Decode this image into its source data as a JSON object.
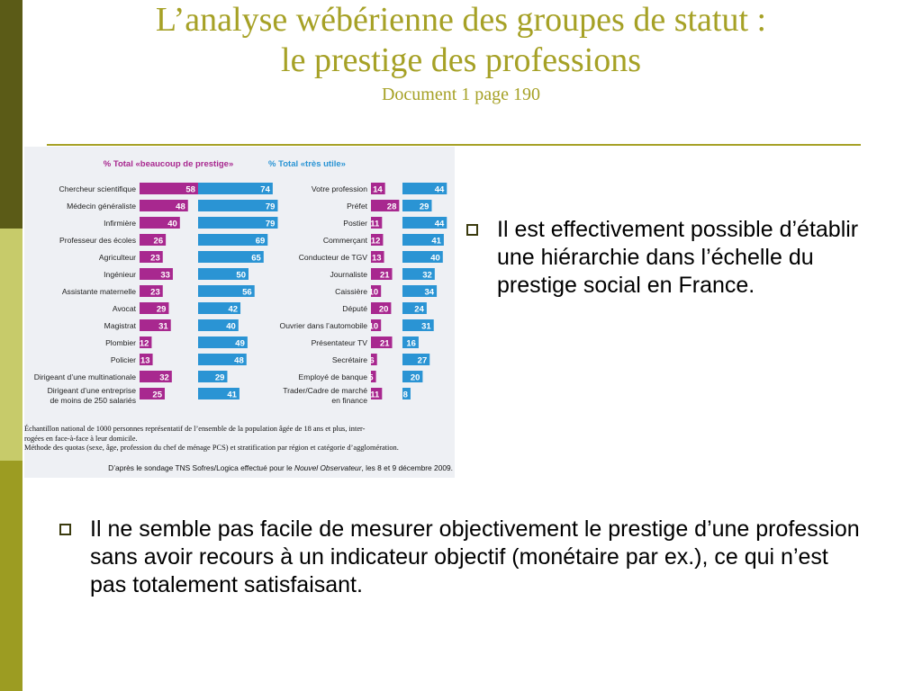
{
  "slide": {
    "title_line1": "L’analyse wébérienne des groupes de statut :",
    "title_line2": "le prestige des professions",
    "subtitle": "Document 1 page 190",
    "bullet1": "Il est effectivement possible d’établir une hiérarchie dans l’échelle du prestige social en France.",
    "bullet2": "Il ne semble pas facile de mesurer objectivement le prestige d’une profession sans avoir recours à un indicateur objectif (monétaire par ex.), ce qui n’est pas totalement satisfaisant."
  },
  "caption": {
    "line1": "Échantillon national de 1000 personnes représentatif de l’ensemble de la population âgée de 18 ans et plus, inter-",
    "line2": "rogées en face-à-face à leur domicile.",
    "line3": "Méthode des quotas (sexe, âge, profession du chef de ménage PCS) et stratification par région et catégorie d’agglomération.",
    "source_prefix": "D’après le sondage TNS Sofres/Logica effectué pour le ",
    "source_italic": "Nouvel Observateur",
    "source_suffix": ", les 8 et 9 décembre 2009."
  },
  "colors": {
    "prestige": "#a8288f",
    "utile": "#2a94d4",
    "title": "#a6a126"
  },
  "chart_data": [
    {
      "type": "bar",
      "categories": [
        "Chercheur scientifique",
        "Médecin généraliste",
        "Infirmière",
        "Professeur des écoles",
        "Agriculteur",
        "Ingénieur",
        "Assistante maternelle",
        "Avocat",
        "Magistrat",
        "Plombier",
        "Policier",
        "Dirigeant d’une multinationale",
        "Dirigeant d’une entreprise de moins de 250 salariés"
      ],
      "series": [
        {
          "name": "% Total «beaucoup de prestige»",
          "values": [
            58,
            48,
            40,
            26,
            23,
            33,
            23,
            29,
            31,
            12,
            13,
            32,
            25
          ]
        },
        {
          "name": "% Total «très utile»",
          "values": [
            74,
            79,
            79,
            69,
            65,
            50,
            56,
            42,
            40,
            49,
            48,
            29,
            41
          ]
        }
      ]
    },
    {
      "type": "bar",
      "categories": [
        "Votre profession",
        "Préfet",
        "Postier",
        "Commerçant",
        "Conducteur de TGV",
        "Journaliste",
        "Caissière",
        "Député",
        "Ouvrier dans l’automobile",
        "Présentateur TV",
        "Secrétaire",
        "Employé de banque",
        "Trader/Cadre de marché en finance"
      ],
      "series": [
        {
          "name": "% Total «beaucoup de prestige»",
          "values": [
            14,
            28,
            11,
            12,
            13,
            21,
            10,
            20,
            10,
            21,
            6,
            5,
            11
          ]
        },
        {
          "name": "% Total «très utile»",
          "values": [
            44,
            29,
            44,
            41,
            40,
            32,
            34,
            24,
            31,
            16,
            27,
            20,
            8
          ]
        }
      ]
    }
  ]
}
